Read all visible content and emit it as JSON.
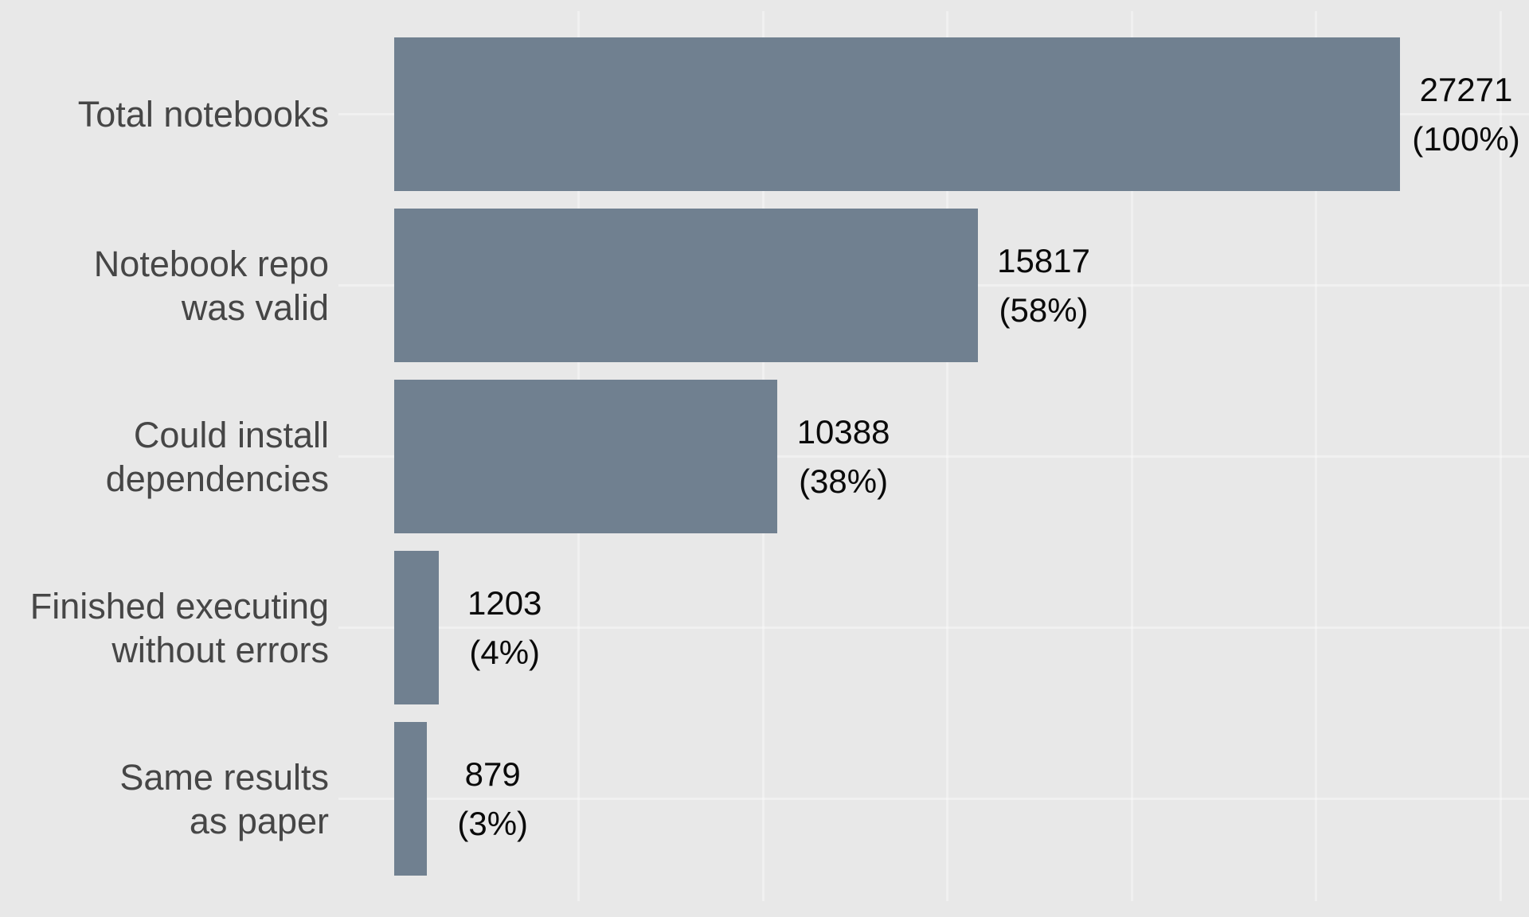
{
  "chart_data": {
    "type": "bar",
    "orientation": "horizontal",
    "title": "",
    "xlabel": "",
    "ylabel": "",
    "categories": [
      "Total notebooks",
      "Notebook repo\nwas valid",
      "Could install\ndependencies",
      "Finished executing\nwithout errors",
      "Same results\nas paper"
    ],
    "values": [
      27271,
      15817,
      10388,
      1203,
      879
    ],
    "value_labels": [
      "27271",
      "15817",
      "10388",
      "1203",
      "879"
    ],
    "percent_labels": [
      "(100%)",
      "(58%)",
      "(38%)",
      "(4%)",
      "(3%)"
    ],
    "xlim": [
      0,
      27271
    ],
    "x_gridline_ticks": [
      5000,
      10000,
      15000,
      20000,
      25000,
      30000
    ],
    "grid": true,
    "legend": false,
    "colors": {
      "bar": "#708090",
      "background": "#e8e8e8",
      "gridline": "rgba(255,255,255,0.35)",
      "category_label": "#464646",
      "value_label": "#0a0a0a"
    }
  }
}
